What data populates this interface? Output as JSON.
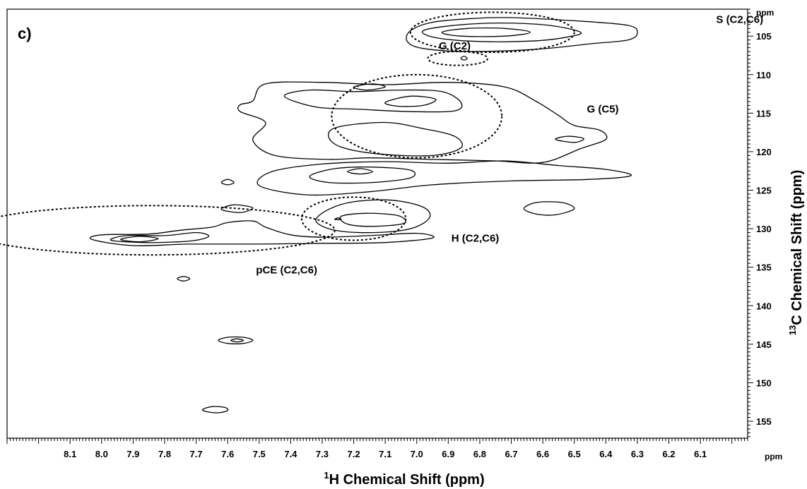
{
  "chart_data": {
    "type": "contour",
    "panel_label": "c)",
    "xlabel": "H Chemical Shift (ppm)",
    "xlabel_superscript": "1",
    "ylabel": "C Chemical Shift (ppm)",
    "ylabel_superscript": "13",
    "x_unit_label": "ppm",
    "y_unit_label": "ppm",
    "xlim": [
      8.3,
      5.95
    ],
    "ylim": [
      101.5,
      157.2
    ],
    "x_ticks": [
      "8.1",
      "8.0",
      "7.9",
      "7.8",
      "7.7",
      "7.6",
      "7.5",
      "7.4",
      "7.3",
      "7.2",
      "7.1",
      "7.0",
      "6.9",
      "6.8",
      "6.7",
      "6.6",
      "6.5",
      "6.4",
      "6.3",
      "6.2",
      "6.1"
    ],
    "y_ticks": [
      "105",
      "110",
      "115",
      "120",
      "125",
      "130",
      "135",
      "140",
      "145",
      "150",
      "155"
    ],
    "regions": [
      {
        "label": "S (C2,C6)",
        "center": [
          6.76,
          104.5
        ],
        "radius": [
          0.26,
          2.6
        ],
        "label_at": [
          6.05,
          103.3
        ]
      },
      {
        "label": "G (C2)",
        "center": [
          6.87,
          107.9
        ],
        "radius": [
          0.095,
          0.9
        ],
        "label_at": [
          6.93,
          106.7
        ]
      },
      {
        "label": "G (C5)",
        "center": [
          7.0,
          115.4
        ],
        "radius": [
          0.27,
          5.4
        ],
        "label_at": [
          6.46,
          114.9
        ]
      },
      {
        "label": "H (C2,C6)",
        "center": [
          7.2,
          128.7
        ],
        "radius": [
          0.165,
          2.8
        ],
        "label_at": [
          6.89,
          131.7
        ]
      },
      {
        "label": "pCE (C2,C6)",
        "center": [
          7.84,
          130.2
        ],
        "radius": [
          0.58,
          3.2
        ],
        "label_at": [
          7.51,
          135.8
        ]
      }
    ],
    "contours": [
      {
        "points": [
          [
            6.3,
            104.6
          ],
          [
            6.33,
            103.6
          ],
          [
            6.5,
            103.0
          ],
          [
            6.7,
            102.6
          ],
          [
            6.82,
            102.7
          ],
          [
            6.95,
            103.2
          ],
          [
            7.02,
            104.3
          ],
          [
            7.03,
            105.7
          ],
          [
            6.98,
            106.6
          ],
          [
            6.84,
            107.0
          ],
          [
            6.62,
            106.7
          ],
          [
            6.45,
            106.0
          ],
          [
            6.33,
            105.5
          ]
        ]
      },
      {
        "points": [
          [
            6.48,
            104.5
          ],
          [
            6.58,
            103.6
          ],
          [
            6.74,
            103.3
          ],
          [
            6.88,
            103.6
          ],
          [
            6.98,
            104.3
          ],
          [
            6.94,
            105.2
          ],
          [
            6.8,
            105.7
          ],
          [
            6.62,
            105.6
          ],
          [
            6.52,
            105.1
          ]
        ]
      },
      {
        "points": [
          [
            6.64,
            104.5
          ],
          [
            6.72,
            104.0
          ],
          [
            6.84,
            104.0
          ],
          [
            6.92,
            104.5
          ],
          [
            6.86,
            105.0
          ],
          [
            6.72,
            105.0
          ]
        ]
      },
      {
        "points": [
          [
            6.86,
            107.9
          ],
          [
            6.85,
            107.6
          ],
          [
            6.84,
            107.9
          ],
          [
            6.85,
            108.1
          ]
        ]
      },
      {
        "points": [
          [
            7.52,
            113.4
          ],
          [
            7.48,
            111.2
          ],
          [
            7.3,
            111.0
          ],
          [
            7.1,
            111.3
          ],
          [
            6.9,
            111.0
          ],
          [
            6.72,
            111.6
          ],
          [
            6.62,
            113.5
          ],
          [
            6.55,
            115.3
          ],
          [
            6.5,
            116.6
          ],
          [
            6.42,
            117.2
          ],
          [
            6.4,
            118.4
          ],
          [
            6.48,
            119.6
          ],
          [
            6.6,
            121.4
          ],
          [
            6.75,
            121.2
          ],
          [
            6.95,
            121.0
          ],
          [
            7.15,
            120.8
          ],
          [
            7.28,
            121.0
          ],
          [
            7.45,
            120.5
          ],
          [
            7.52,
            118.5
          ],
          [
            7.48,
            116.2
          ],
          [
            7.56,
            114.8
          ],
          [
            7.56,
            113.9
          ]
        ]
      },
      {
        "points": [
          [
            7.42,
            112.8
          ],
          [
            7.34,
            112.0
          ],
          [
            7.2,
            112.2
          ],
          [
            7.05,
            112.0
          ],
          [
            6.92,
            112.2
          ],
          [
            6.86,
            113.6
          ],
          [
            6.88,
            114.7
          ],
          [
            7.02,
            114.8
          ],
          [
            7.18,
            114.5
          ],
          [
            7.32,
            114.2
          ]
        ]
      },
      {
        "points": [
          [
            7.1,
            113.6
          ],
          [
            7.02,
            112.8
          ],
          [
            6.94,
            113.2
          ],
          [
            6.98,
            114.0
          ],
          [
            7.06,
            114.1
          ]
        ]
      },
      {
        "points": [
          [
            7.25,
            116.8
          ],
          [
            7.1,
            116.2
          ],
          [
            6.98,
            117.0
          ],
          [
            6.88,
            118.0
          ],
          [
            6.86,
            119.5
          ],
          [
            6.95,
            120.5
          ],
          [
            7.12,
            120.3
          ],
          [
            7.24,
            119.4
          ],
          [
            7.28,
            118.0
          ]
        ]
      },
      {
        "points": [
          [
            7.2,
            111.6
          ],
          [
            7.14,
            111.2
          ],
          [
            7.1,
            111.6
          ],
          [
            7.16,
            112.0
          ]
        ]
      },
      {
        "points": [
          [
            7.5,
            124.4
          ],
          [
            7.46,
            122.6
          ],
          [
            7.3,
            121.6
          ],
          [
            7.1,
            121.3
          ],
          [
            6.9,
            121.5
          ],
          [
            6.72,
            121.2
          ],
          [
            6.55,
            121.8
          ],
          [
            6.4,
            122.3
          ],
          [
            6.32,
            123.1
          ],
          [
            6.45,
            123.6
          ],
          [
            6.7,
            123.8
          ],
          [
            6.95,
            124.3
          ],
          [
            7.15,
            125.2
          ],
          [
            7.35,
            125.6
          ]
        ]
      },
      {
        "points": [
          [
            7.34,
            123.2
          ],
          [
            7.26,
            122.2
          ],
          [
            7.14,
            122.0
          ],
          [
            7.02,
            122.4
          ],
          [
            7.02,
            123.4
          ],
          [
            7.14,
            124.0
          ],
          [
            7.28,
            124.0
          ]
        ]
      },
      {
        "points": [
          [
            7.22,
            122.6
          ],
          [
            7.18,
            122.2
          ],
          [
            7.14,
            122.6
          ],
          [
            7.18,
            122.9
          ]
        ]
      },
      {
        "points": [
          [
            7.28,
            127.5
          ],
          [
            7.2,
            126.5
          ],
          [
            7.08,
            126.3
          ],
          [
            6.98,
            127.2
          ],
          [
            6.96,
            128.6
          ],
          [
            7.02,
            130.0
          ],
          [
            7.14,
            130.5
          ],
          [
            7.26,
            130.2
          ],
          [
            7.32,
            129.0
          ]
        ]
      },
      {
        "points": [
          [
            7.24,
            128.4
          ],
          [
            7.16,
            128.0
          ],
          [
            7.06,
            128.3
          ],
          [
            7.04,
            129.3
          ],
          [
            7.14,
            129.7
          ],
          [
            7.22,
            129.4
          ]
        ]
      },
      {
        "points": [
          [
            7.26,
            128.8
          ],
          [
            7.25,
            128.6
          ],
          [
            7.24,
            128.8
          ]
        ]
      },
      {
        "points": [
          [
            8.03,
            131.4
          ],
          [
            8.0,
            130.8
          ],
          [
            7.85,
            130.7
          ],
          [
            7.75,
            130.2
          ],
          [
            7.65,
            129.8
          ],
          [
            7.6,
            129.2
          ],
          [
            7.52,
            129.0
          ],
          [
            7.48,
            129.8
          ],
          [
            7.4,
            130.8
          ],
          [
            7.3,
            131.1
          ],
          [
            7.15,
            130.9
          ],
          [
            7.0,
            130.6
          ],
          [
            6.95,
            131.2
          ],
          [
            7.1,
            131.8
          ],
          [
            7.3,
            131.9
          ],
          [
            7.5,
            132.0
          ],
          [
            7.72,
            132.0
          ],
          [
            7.9,
            132.2
          ]
        ]
      },
      {
        "points": [
          [
            7.97,
            131.5
          ],
          [
            7.92,
            130.9
          ],
          [
            7.8,
            130.9
          ],
          [
            7.7,
            130.5
          ],
          [
            7.66,
            131.0
          ],
          [
            7.72,
            131.6
          ],
          [
            7.86,
            131.8
          ]
        ]
      },
      {
        "points": [
          [
            7.94,
            131.4
          ],
          [
            7.88,
            131.0
          ],
          [
            7.82,
            131.3
          ],
          [
            7.88,
            131.7
          ]
        ]
      },
      {
        "points": [
          [
            7.62,
            127.5
          ],
          [
            7.58,
            126.9
          ],
          [
            7.52,
            127.3
          ],
          [
            7.56,
            127.9
          ]
        ]
      },
      {
        "points": [
          [
            6.66,
            127.4
          ],
          [
            6.62,
            126.6
          ],
          [
            6.54,
            126.6
          ],
          [
            6.5,
            127.4
          ],
          [
            6.56,
            128.2
          ],
          [
            6.62,
            128.1
          ]
        ]
      },
      {
        "points": [
          [
            7.76,
            136.5
          ],
          [
            7.74,
            136.2
          ],
          [
            7.72,
            136.5
          ],
          [
            7.74,
            136.8
          ]
        ]
      },
      {
        "points": [
          [
            7.63,
            144.5
          ],
          [
            7.6,
            144.1
          ],
          [
            7.55,
            144.1
          ],
          [
            7.52,
            144.5
          ],
          [
            7.55,
            144.9
          ],
          [
            7.6,
            144.9
          ]
        ]
      },
      {
        "points": [
          [
            7.59,
            144.5
          ],
          [
            7.57,
            144.3
          ],
          [
            7.55,
            144.5
          ],
          [
            7.57,
            144.7
          ]
        ]
      },
      {
        "points": [
          [
            7.68,
            153.5
          ],
          [
            7.65,
            153.1
          ],
          [
            7.61,
            153.2
          ],
          [
            7.6,
            153.6
          ],
          [
            7.63,
            153.9
          ],
          [
            7.66,
            153.8
          ]
        ]
      },
      {
        "points": [
          [
            6.56,
            118.4
          ],
          [
            6.52,
            118.0
          ],
          [
            6.47,
            118.3
          ],
          [
            6.5,
            118.8
          ]
        ]
      },
      {
        "points": [
          [
            7.62,
            124.0
          ],
          [
            7.6,
            123.6
          ],
          [
            7.58,
            124.0
          ],
          [
            7.6,
            124.3
          ]
        ]
      }
    ]
  }
}
